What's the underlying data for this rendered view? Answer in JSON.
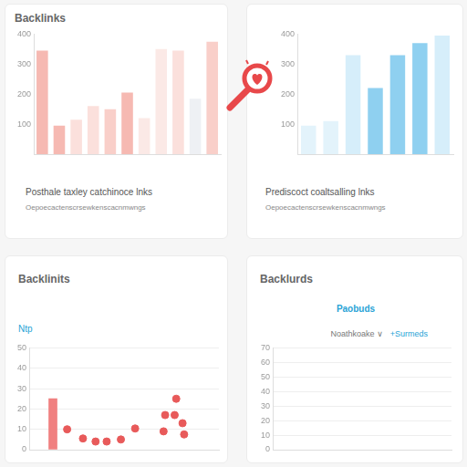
{
  "chart_data": [
    {
      "type": "bar",
      "title": "Backlinks",
      "annotations": [
        "Posthale taxley catchinoce lnks",
        "Oepoecactenscrsewkenscacnmwngs"
      ],
      "categories": [
        null,
        null,
        null,
        null,
        null,
        null,
        null,
        null,
        null,
        null,
        null
      ],
      "values": [
        345,
        95,
        115,
        160,
        150,
        205,
        120,
        350,
        345,
        185,
        375
      ],
      "colors": [
        "#f6b9b2",
        "#f6b9b2",
        "#fbe0dc",
        "#fbe0dc",
        "#f9cfc9",
        "#f6b9b2",
        "#fbe9e6",
        "#fbe9e6",
        "#fbe0dc",
        "#eef0f4",
        "#f9cfc9"
      ],
      "ylim": [
        0,
        400
      ],
      "yticks": [
        100,
        200,
        300,
        400
      ],
      "grid": false,
      "tick_labels": "y"
    },
    {
      "type": "bar",
      "annotations": [
        "Prediscoct coaltsalling lnks",
        "Oepoecactenscrsewkenscacnmwngs"
      ],
      "categories": [
        null,
        null,
        null,
        null,
        null,
        null,
        null
      ],
      "values": [
        95,
        110,
        330,
        220,
        330,
        370,
        395
      ],
      "colors": [
        "#e3f3fb",
        "#e3f3fb",
        "#d6eefa",
        "#8fd0f0",
        "#8fd0f0",
        "#8fd0f0",
        "#d6eefa"
      ],
      "ylim": [
        0,
        400
      ],
      "yticks": [
        100,
        200,
        300,
        400
      ],
      "grid": false,
      "tick_labels": "y"
    },
    {
      "type": "scatter",
      "title": "Backlinits",
      "subtitle": "Ntp",
      "series": [
        {
          "type": "bar",
          "color": "#f08080",
          "x": [
            0.5
          ],
          "values": [
            25
          ]
        },
        {
          "type": "scatter",
          "color": "#e85a5a",
          "x": [
            1.4,
            2.4,
            3.2,
            3.9,
            4.8,
            5.7,
            7.5,
            7.6,
            8.2,
            8.3,
            8.7,
            8.8
          ],
          "values": [
            10,
            5.5,
            4,
            4,
            5,
            10.4,
            9,
            17,
            17,
            25,
            13,
            7.5
          ]
        }
      ],
      "xlim": [
        0,
        10
      ],
      "ylim": [
        0,
        50
      ],
      "yticks": [
        0,
        10,
        20,
        30,
        40,
        50
      ],
      "grid": true,
      "tick_labels": "y"
    },
    {
      "type": "line",
      "title": "Backlurds",
      "subtitle": "Paobuds",
      "annotations": [
        "Noathkoake ∨",
        "+Surmeds"
      ],
      "categories": [],
      "values": [],
      "ylim": [
        0,
        70
      ],
      "yticks": [
        0,
        10,
        20,
        30,
        40,
        50,
        60,
        70
      ],
      "grid": true,
      "tick_labels": "y"
    }
  ]
}
